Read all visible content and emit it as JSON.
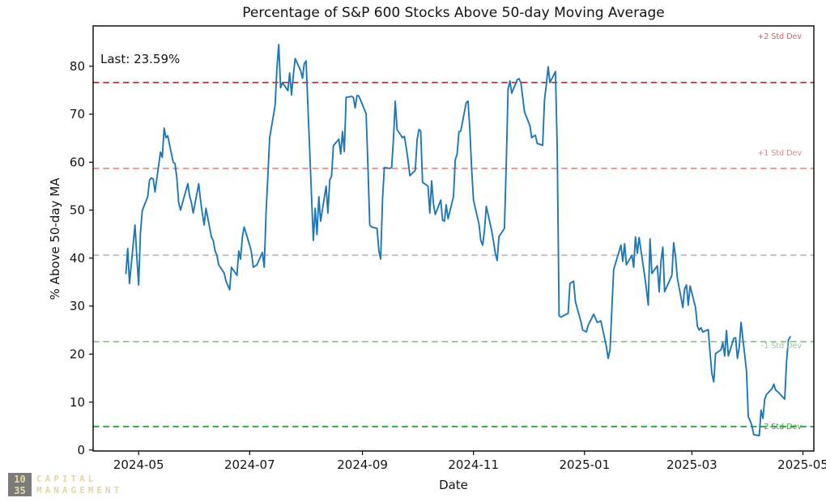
{
  "title": "Percentage of S&P 600 Stocks Above 50-day Moving Average",
  "annotation": {
    "last_label": "Last: 23.59%"
  },
  "axes": {
    "xlabel": "Date",
    "ylabel": "% Above 50-day MA"
  },
  "logo": {
    "box_line1": "10",
    "box_line2": "35",
    "name_line1": "CAPITAL",
    "name_line2": "MANAGEMENT",
    "box_color": "#7b7b7b",
    "text_color": "#e6d5a4"
  },
  "chart_data": {
    "type": "line",
    "title": "Percentage of S&P 600 Stocks Above 50-day Moving Average",
    "xlabel": "Date",
    "ylabel": "% Above 50-day MA",
    "grid": false,
    "legend": "none",
    "xlim": [
      "2024-04-06",
      "2025-05-07"
    ],
    "ylim": [
      -0.2,
      88.4
    ],
    "x_ticks": [
      {
        "date": "2024-05-01",
        "label": "2024-05"
      },
      {
        "date": "2024-07-01",
        "label": "2024-07"
      },
      {
        "date": "2024-09-01",
        "label": "2024-09"
      },
      {
        "date": "2024-11-01",
        "label": "2024-11"
      },
      {
        "date": "2025-01-01",
        "label": "2025-01"
      },
      {
        "date": "2025-03-01",
        "label": "2025-03"
      },
      {
        "date": "2025-05-01",
        "label": "2025-05"
      }
    ],
    "y_ticks": [
      0,
      10,
      20,
      30,
      40,
      50,
      60,
      70,
      80
    ],
    "reference_lines": [
      {
        "label": "+2 Std Dev",
        "value": 76.6,
        "color": "#d62b2b",
        "label_color": "#d2605a",
        "label_value": 86.2
      },
      {
        "label": "+1 Std Dev",
        "value": 58.7,
        "color": "#ea8d8a",
        "label_color": "#e08580",
        "label_value": 61.9
      },
      {
        "label": "",
        "value": 40.6,
        "color": "#bfbfbf",
        "label_color": "#bfbfbf",
        "label_value": 40.6
      },
      {
        "label": "-1 Std Dev",
        "value": 22.6,
        "color": "#8cc98c",
        "label_color": "#96c79a",
        "label_value": 21.8
      },
      {
        "label": "-2 Std Dev",
        "value": 4.9,
        "color": "#2f9e3e",
        "label_color": "#2f9e3e",
        "label_value": 4.9
      }
    ],
    "series": [
      {
        "color": "#1f77b4",
        "points": [
          [
            "2024-04-24",
            36.8
          ],
          [
            "2024-04-25",
            42.0
          ],
          [
            "2024-04-26",
            34.7
          ],
          [
            "2024-04-29",
            46.9
          ],
          [
            "2024-04-30",
            40.5
          ],
          [
            "2024-05-01",
            34.4
          ],
          [
            "2024-05-02",
            45.2
          ],
          [
            "2024-05-03",
            49.9
          ],
          [
            "2024-05-06",
            52.8
          ],
          [
            "2024-05-07",
            56.3
          ],
          [
            "2024-05-08",
            56.7
          ],
          [
            "2024-05-09",
            56.5
          ],
          [
            "2024-05-10",
            53.8
          ],
          [
            "2024-05-13",
            62.1
          ],
          [
            "2024-05-14",
            61.0
          ],
          [
            "2024-05-15",
            67.1
          ],
          [
            "2024-05-16",
            65.1
          ],
          [
            "2024-05-17",
            65.5
          ],
          [
            "2024-05-20",
            60.0
          ],
          [
            "2024-05-21",
            59.7
          ],
          [
            "2024-05-22",
            56.7
          ],
          [
            "2024-05-23",
            51.6
          ],
          [
            "2024-05-24",
            50.0
          ],
          [
            "2024-05-28",
            55.5
          ],
          [
            "2024-05-29",
            53.0
          ],
          [
            "2024-05-30",
            51.6
          ],
          [
            "2024-05-31",
            49.4
          ],
          [
            "2024-06-03",
            55.5
          ],
          [
            "2024-06-04",
            52.1
          ],
          [
            "2024-06-05",
            49.4
          ],
          [
            "2024-06-06",
            46.9
          ],
          [
            "2024-06-07",
            50.4
          ],
          [
            "2024-06-10",
            44.4
          ],
          [
            "2024-06-11",
            43.7
          ],
          [
            "2024-06-12",
            41.5
          ],
          [
            "2024-06-13",
            40.6
          ],
          [
            "2024-06-14",
            38.6
          ],
          [
            "2024-06-17",
            36.9
          ],
          [
            "2024-06-18",
            35.2
          ],
          [
            "2024-06-20",
            33.4
          ],
          [
            "2024-06-21",
            38.1
          ],
          [
            "2024-06-24",
            36.4
          ],
          [
            "2024-06-25",
            41.5
          ],
          [
            "2024-06-26",
            39.8
          ],
          [
            "2024-06-27",
            44.4
          ],
          [
            "2024-06-28",
            46.5
          ],
          [
            "2024-07-01",
            42.7
          ],
          [
            "2024-07-02",
            41.2
          ],
          [
            "2024-07-03",
            38.1
          ],
          [
            "2024-07-05",
            38.6
          ],
          [
            "2024-07-08",
            41.2
          ],
          [
            "2024-07-09",
            38.1
          ],
          [
            "2024-07-10",
            49.4
          ],
          [
            "2024-07-11",
            57.2
          ],
          [
            "2024-07-12",
            65.1
          ],
          [
            "2024-07-15",
            71.8
          ],
          [
            "2024-07-16",
            79.7
          ],
          [
            "2024-07-17",
            84.5
          ],
          [
            "2024-07-18",
            75.5
          ],
          [
            "2024-07-19",
            76.6
          ],
          [
            "2024-07-22",
            74.9
          ],
          [
            "2024-07-23",
            78.6
          ],
          [
            "2024-07-24",
            74.0
          ],
          [
            "2024-07-25",
            78.1
          ],
          [
            "2024-07-26",
            81.6
          ],
          [
            "2024-07-29",
            79.1
          ],
          [
            "2024-07-30",
            77.5
          ],
          [
            "2024-07-31",
            80.5
          ],
          [
            "2024-08-01",
            81.1
          ],
          [
            "2024-08-02",
            71.8
          ],
          [
            "2024-08-05",
            43.7
          ],
          [
            "2024-08-06",
            50.4
          ],
          [
            "2024-08-07",
            44.9
          ],
          [
            "2024-08-08",
            52.8
          ],
          [
            "2024-08-09",
            47.7
          ],
          [
            "2024-08-12",
            55.0
          ],
          [
            "2024-08-13",
            49.4
          ],
          [
            "2024-08-14",
            56.3
          ],
          [
            "2024-08-15",
            57.0
          ],
          [
            "2024-08-16",
            63.4
          ],
          [
            "2024-08-19",
            64.8
          ],
          [
            "2024-08-20",
            61.7
          ],
          [
            "2024-08-21",
            66.4
          ],
          [
            "2024-08-22",
            62.2
          ],
          [
            "2024-08-23",
            73.5
          ],
          [
            "2024-08-26",
            73.7
          ],
          [
            "2024-08-27",
            73.5
          ],
          [
            "2024-08-28",
            71.3
          ],
          [
            "2024-08-29",
            73.9
          ],
          [
            "2024-08-30",
            73.8
          ],
          [
            "2024-09-03",
            70.1
          ],
          [
            "2024-09-04",
            58.9
          ],
          [
            "2024-09-05",
            46.9
          ],
          [
            "2024-09-06",
            46.5
          ],
          [
            "2024-09-09",
            46.2
          ],
          [
            "2024-09-10",
            41.5
          ],
          [
            "2024-09-11",
            39.8
          ],
          [
            "2024-09-12",
            52.0
          ],
          [
            "2024-09-13",
            58.9
          ],
          [
            "2024-09-16",
            58.7
          ],
          [
            "2024-09-17",
            58.9
          ],
          [
            "2024-09-18",
            64.6
          ],
          [
            "2024-09-19",
            72.7
          ],
          [
            "2024-09-20",
            66.8
          ],
          [
            "2024-09-23",
            65.1
          ],
          [
            "2024-09-24",
            65.4
          ],
          [
            "2024-09-25",
            63.1
          ],
          [
            "2024-09-26",
            60.5
          ],
          [
            "2024-09-27",
            57.2
          ],
          [
            "2024-09-30",
            58.3
          ],
          [
            "2024-10-01",
            64.7
          ],
          [
            "2024-10-02",
            66.8
          ],
          [
            "2024-10-03",
            66.5
          ],
          [
            "2024-10-04",
            55.8
          ],
          [
            "2024-10-07",
            55.0
          ],
          [
            "2024-10-08",
            49.4
          ],
          [
            "2024-10-09",
            56.1
          ],
          [
            "2024-10-10",
            51.3
          ],
          [
            "2024-10-11",
            49.1
          ],
          [
            "2024-10-14",
            52.1
          ],
          [
            "2024-10-15",
            47.9
          ],
          [
            "2024-10-16",
            47.7
          ],
          [
            "2024-10-17",
            51.1
          ],
          [
            "2024-10-18",
            48.2
          ],
          [
            "2024-10-21",
            52.9
          ],
          [
            "2024-10-22",
            60.5
          ],
          [
            "2024-10-23",
            61.7
          ],
          [
            "2024-10-24",
            66.3
          ],
          [
            "2024-10-25",
            66.5
          ],
          [
            "2024-10-28",
            72.4
          ],
          [
            "2024-10-29",
            72.7
          ],
          [
            "2024-10-30",
            66.8
          ],
          [
            "2024-10-31",
            58.3
          ],
          [
            "2024-11-01",
            52.1
          ],
          [
            "2024-11-04",
            47.1
          ],
          [
            "2024-11-05",
            43.7
          ],
          [
            "2024-11-06",
            42.7
          ],
          [
            "2024-11-07",
            45.7
          ],
          [
            "2024-11-08",
            50.8
          ],
          [
            "2024-11-11",
            45.7
          ],
          [
            "2024-11-12",
            43.5
          ],
          [
            "2024-11-13",
            41.0
          ],
          [
            "2024-11-14",
            39.5
          ],
          [
            "2024-11-15",
            44.5
          ],
          [
            "2024-11-18",
            46.2
          ],
          [
            "2024-11-19",
            60.0
          ],
          [
            "2024-11-20",
            75.2
          ],
          [
            "2024-11-21",
            76.9
          ],
          [
            "2024-11-22",
            74.4
          ],
          [
            "2024-11-25",
            77.2
          ],
          [
            "2024-11-26",
            77.4
          ],
          [
            "2024-11-27",
            76.6
          ],
          [
            "2024-11-29",
            70.5
          ],
          [
            "2024-12-02",
            67.6
          ],
          [
            "2024-12-03",
            65.1
          ],
          [
            "2024-12-04",
            65.4
          ],
          [
            "2024-12-05",
            65.6
          ],
          [
            "2024-12-06",
            63.9
          ],
          [
            "2024-12-09",
            63.5
          ],
          [
            "2024-12-10",
            73.0
          ],
          [
            "2024-12-11",
            76.1
          ],
          [
            "2024-12-12",
            79.9
          ],
          [
            "2024-12-13",
            76.6
          ],
          [
            "2024-12-16",
            78.9
          ],
          [
            "2024-12-17",
            62.9
          ],
          [
            "2024-12-18",
            28.0
          ],
          [
            "2024-12-19",
            27.7
          ],
          [
            "2024-12-20",
            27.9
          ],
          [
            "2024-12-23",
            28.5
          ],
          [
            "2024-12-24",
            34.7
          ],
          [
            "2024-12-26",
            35.2
          ],
          [
            "2024-12-27",
            30.9
          ],
          [
            "2024-12-30",
            26.8
          ],
          [
            "2024-12-31",
            25.0
          ],
          [
            "2025-01-02",
            24.6
          ],
          [
            "2025-01-03",
            26.0
          ],
          [
            "2025-01-06",
            28.3
          ],
          [
            "2025-01-07",
            27.5
          ],
          [
            "2025-01-08",
            26.6
          ],
          [
            "2025-01-10",
            26.9
          ],
          [
            "2025-01-13",
            21.6
          ],
          [
            "2025-01-14",
            19.1
          ],
          [
            "2025-01-15",
            20.9
          ],
          [
            "2025-01-16",
            29.2
          ],
          [
            "2025-01-17",
            37.6
          ],
          [
            "2025-01-21",
            42.7
          ],
          [
            "2025-01-22",
            39.3
          ],
          [
            "2025-01-23",
            43.0
          ],
          [
            "2025-01-24",
            38.6
          ],
          [
            "2025-01-27",
            40.6
          ],
          [
            "2025-01-28",
            38.1
          ],
          [
            "2025-01-29",
            44.4
          ],
          [
            "2025-01-30",
            41.0
          ],
          [
            "2025-01-31",
            44.3
          ],
          [
            "2025-02-03",
            36.4
          ],
          [
            "2025-02-04",
            33.6
          ],
          [
            "2025-02-05",
            30.2
          ],
          [
            "2025-02-06",
            44.0
          ],
          [
            "2025-02-07",
            36.8
          ],
          [
            "2025-02-10",
            38.4
          ],
          [
            "2025-02-11",
            33.0
          ],
          [
            "2025-02-12",
            39.3
          ],
          [
            "2025-02-13",
            42.3
          ],
          [
            "2025-02-14",
            33.0
          ],
          [
            "2025-02-18",
            36.4
          ],
          [
            "2025-02-19",
            43.2
          ],
          [
            "2025-02-20",
            40.3
          ],
          [
            "2025-02-21",
            35.9
          ],
          [
            "2025-02-24",
            29.7
          ],
          [
            "2025-02-25",
            33.6
          ],
          [
            "2025-02-26",
            34.4
          ],
          [
            "2025-02-27",
            30.2
          ],
          [
            "2025-02-28",
            34.2
          ],
          [
            "2025-03-03",
            29.7
          ],
          [
            "2025-03-04",
            25.8
          ],
          [
            "2025-03-05",
            25.0
          ],
          [
            "2025-03-06",
            25.5
          ],
          [
            "2025-03-07",
            24.6
          ],
          [
            "2025-03-10",
            25.1
          ],
          [
            "2025-03-11",
            20.1
          ],
          [
            "2025-03-12",
            15.9
          ],
          [
            "2025-03-13",
            14.2
          ],
          [
            "2025-03-14",
            20.1
          ],
          [
            "2025-03-17",
            20.9
          ],
          [
            "2025-03-18",
            22.4
          ],
          [
            "2025-03-19",
            19.6
          ],
          [
            "2025-03-20",
            24.9
          ],
          [
            "2025-03-21",
            19.6
          ],
          [
            "2025-03-24",
            23.3
          ],
          [
            "2025-03-25",
            23.4
          ],
          [
            "2025-03-26",
            19.1
          ],
          [
            "2025-03-27",
            21.5
          ],
          [
            "2025-03-28",
            26.6
          ],
          [
            "2025-03-31",
            16.5
          ],
          [
            "2025-04-01",
            6.9
          ],
          [
            "2025-04-02",
            6.1
          ],
          [
            "2025-04-03",
            5.0
          ],
          [
            "2025-04-04",
            3.2
          ],
          [
            "2025-04-07",
            3.0
          ],
          [
            "2025-04-08",
            8.3
          ],
          [
            "2025-04-09",
            6.6
          ],
          [
            "2025-04-10",
            10.6
          ],
          [
            "2025-04-11",
            11.6
          ],
          [
            "2025-04-14",
            12.8
          ],
          [
            "2025-04-15",
            13.7
          ],
          [
            "2025-04-16",
            12.5
          ],
          [
            "2025-04-17",
            12.2
          ],
          [
            "2025-04-21",
            10.6
          ],
          [
            "2025-04-22",
            18.5
          ],
          [
            "2025-04-23",
            22.9
          ],
          [
            "2025-04-24",
            23.59
          ]
        ]
      }
    ]
  }
}
